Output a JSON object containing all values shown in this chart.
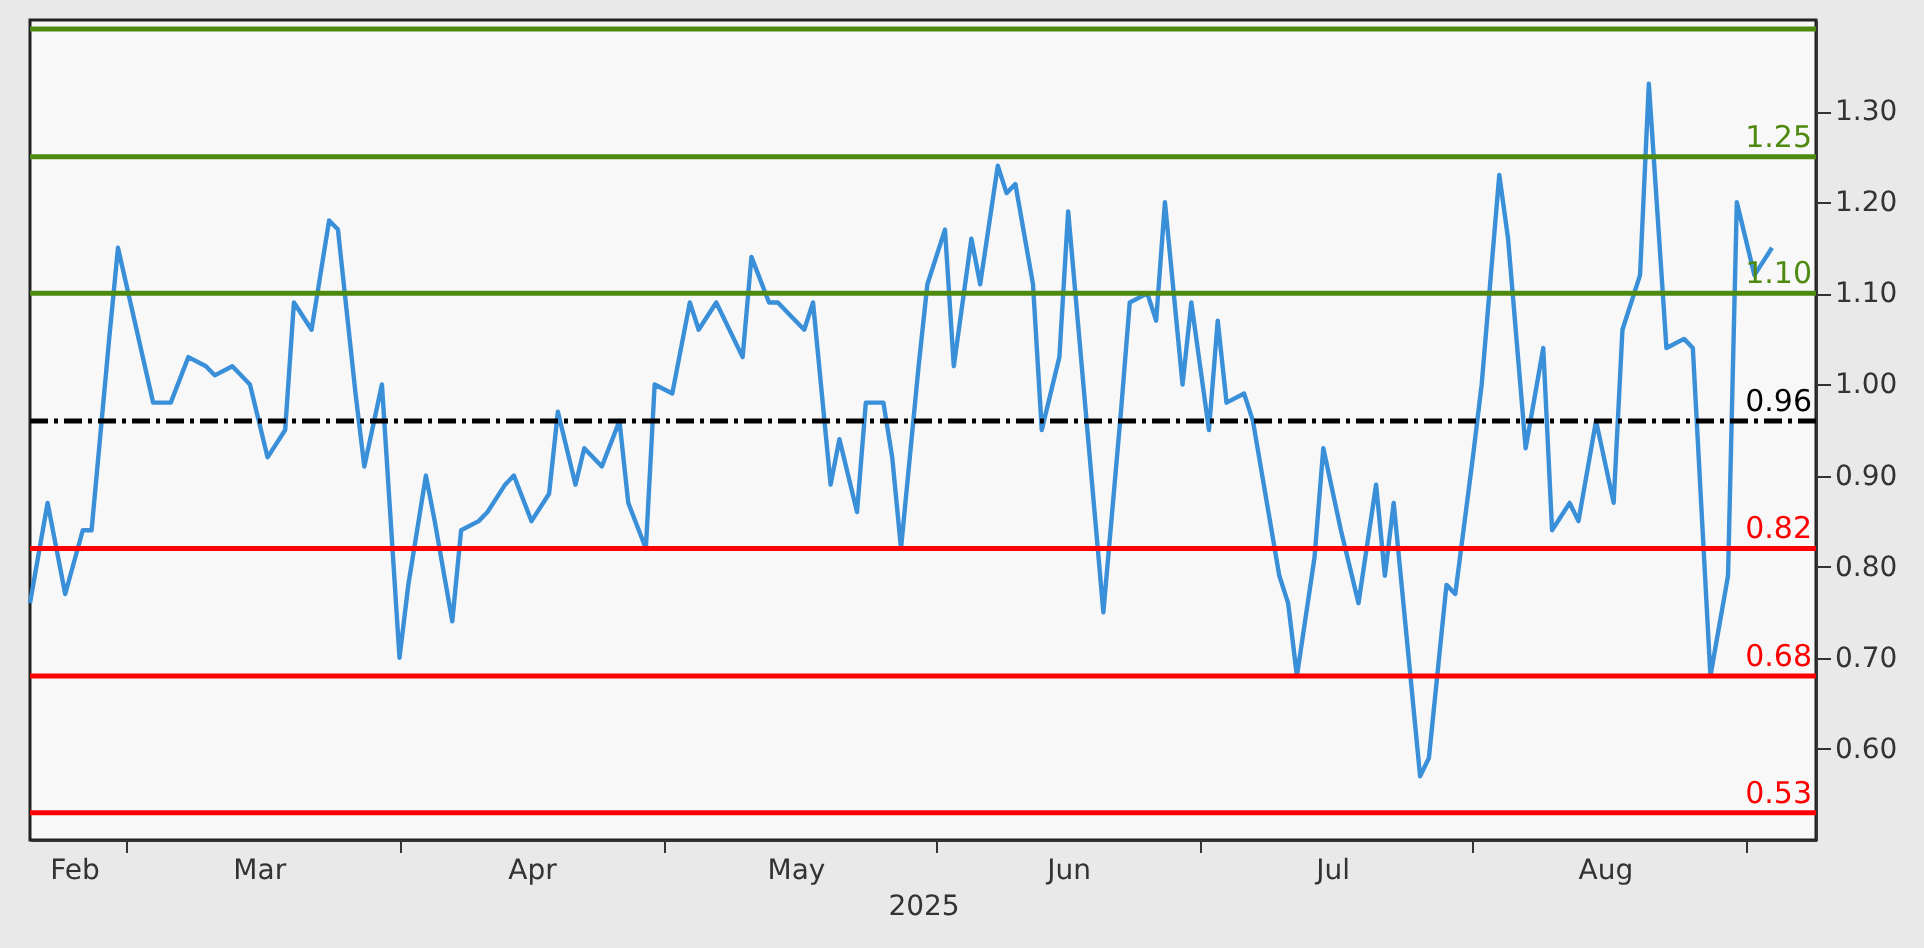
{
  "chart_data": {
    "type": "line",
    "xlabel": "2025",
    "x": [
      "2025-02-18",
      "2025-02-20",
      "2025-02-22",
      "2025-02-24",
      "2025-02-25",
      "2025-02-27",
      "2025-02-28",
      "2025-03-04",
      "2025-03-05",
      "2025-03-06",
      "2025-03-08",
      "2025-03-10",
      "2025-03-11",
      "2025-03-13",
      "2025-03-15",
      "2025-03-17",
      "2025-03-19",
      "2025-03-20",
      "2025-03-22",
      "2025-03-24",
      "2025-03-25",
      "2025-03-27",
      "2025-03-28",
      "2025-03-30",
      "2025-04-01",
      "2025-04-02",
      "2025-04-04",
      "2025-04-05",
      "2025-04-07",
      "2025-04-08",
      "2025-04-10",
      "2025-04-11",
      "2025-04-13",
      "2025-04-14",
      "2025-04-16",
      "2025-04-18",
      "2025-04-19",
      "2025-04-21",
      "2025-04-22",
      "2025-04-24",
      "2025-04-26",
      "2025-04-27",
      "2025-04-29",
      "2025-04-30",
      "2025-05-02",
      "2025-05-04",
      "2025-05-05",
      "2025-05-07",
      "2025-05-10",
      "2025-05-11",
      "2025-05-13",
      "2025-05-14",
      "2025-05-17",
      "2025-05-18",
      "2025-05-20",
      "2025-05-21",
      "2025-05-23",
      "2025-05-24",
      "2025-05-26",
      "2025-05-27",
      "2025-05-28",
      "2025-05-30",
      "2025-05-31",
      "2025-06-02",
      "2025-06-03",
      "2025-06-05",
      "2025-06-06",
      "2025-06-08",
      "2025-06-09",
      "2025-06-10",
      "2025-06-12",
      "2025-06-13",
      "2025-06-15",
      "2025-06-16",
      "2025-06-20",
      "2025-06-22",
      "2025-06-23",
      "2025-06-25",
      "2025-06-26",
      "2025-06-27",
      "2025-06-29",
      "2025-06-30",
      "2025-07-02",
      "2025-07-03",
      "2025-07-04",
      "2025-07-06",
      "2025-07-07",
      "2025-07-10",
      "2025-07-11",
      "2025-07-12",
      "2025-07-14",
      "2025-07-15",
      "2025-07-17",
      "2025-07-19",
      "2025-07-21",
      "2025-07-22",
      "2025-07-23",
      "2025-07-26",
      "2025-07-27",
      "2025-07-29",
      "2025-07-30",
      "2025-08-01",
      "2025-08-02",
      "2025-08-04",
      "2025-08-05",
      "2025-08-07",
      "2025-08-09",
      "2025-08-10",
      "2025-08-12",
      "2025-08-13",
      "2025-08-15",
      "2025-08-17",
      "2025-08-18",
      "2025-08-20",
      "2025-08-21",
      "2025-08-23",
      "2025-08-25",
      "2025-08-26",
      "2025-08-28",
      "2025-08-30",
      "2025-08-31",
      "2025-09-02",
      "2025-09-04"
    ],
    "series": [
      {
        "color": "#3a8fd9",
        "values": [
          0.76,
          0.87,
          0.77,
          0.84,
          0.84,
          1.05,
          1.15,
          0.98,
          0.98,
          0.98,
          1.03,
          1.02,
          1.01,
          1.02,
          1.0,
          0.92,
          0.95,
          1.09,
          1.06,
          1.18,
          1.17,
          0.99,
          0.91,
          1.0,
          0.7,
          0.78,
          0.9,
          0.85,
          0.74,
          0.84,
          0.85,
          0.86,
          0.89,
          0.9,
          0.85,
          0.88,
          0.97,
          0.89,
          0.93,
          0.91,
          0.96,
          0.87,
          0.82,
          1.0,
          0.99,
          1.09,
          1.06,
          1.09,
          1.03,
          1.14,
          1.09,
          1.09,
          1.06,
          1.09,
          0.89,
          0.94,
          0.86,
          0.98,
          0.98,
          0.92,
          0.82,
          1.02,
          1.11,
          1.17,
          1.02,
          1.16,
          1.11,
          1.24,
          1.21,
          1.22,
          1.11,
          0.95,
          1.03,
          1.19,
          0.75,
          0.97,
          1.09,
          1.1,
          1.07,
          1.2,
          1.0,
          1.09,
          0.95,
          1.07,
          0.98,
          0.99,
          0.96,
          0.79,
          0.76,
          0.68,
          0.81,
          0.93,
          0.84,
          0.76,
          0.89,
          0.79,
          0.87,
          0.57,
          0.59,
          0.78,
          0.77,
          0.92,
          1.0,
          1.23,
          1.16,
          0.93,
          1.04,
          0.84,
          0.87,
          0.85,
          0.96,
          0.87,
          1.06,
          1.12,
          1.33,
          1.04,
          1.05,
          1.04,
          0.68,
          0.79,
          1.2,
          1.12,
          1.15
        ]
      }
    ],
    "xlim": [
      "2025-02-18",
      "2025-09-09"
    ],
    "xticks": [
      {
        "value": "2025-02-23",
        "label": "Feb"
      },
      {
        "value": "2025-03-01",
        "label": null
      },
      {
        "value": "2025-03-16",
        "label": "Mar"
      },
      {
        "value": "2025-04-01",
        "label": null
      },
      {
        "value": "2025-04-16",
        "label": "Apr"
      },
      {
        "value": "2025-05-01",
        "label": null
      },
      {
        "value": "2025-05-16",
        "label": "May"
      },
      {
        "value": "2025-06-01",
        "label": null
      },
      {
        "value": "2025-06-16",
        "label": "Jun"
      },
      {
        "value": "2025-07-01",
        "label": null
      },
      {
        "value": "2025-07-16",
        "label": "Jul"
      },
      {
        "value": "2025-08-01",
        "label": null
      },
      {
        "value": "2025-08-16",
        "label": "Aug"
      },
      {
        "value": "2025-09-01",
        "label": null
      }
    ],
    "ylim": [
      0.5,
      1.4
    ],
    "yticks": [
      {
        "value": 0.6,
        "label": "0.60"
      },
      {
        "value": 0.7,
        "label": "0.70"
      },
      {
        "value": 0.8,
        "label": "0.80"
      },
      {
        "value": 0.9,
        "label": "0.90"
      },
      {
        "value": 1.0,
        "label": "1.00"
      },
      {
        "value": 1.1,
        "label": "1.10"
      },
      {
        "value": 1.2,
        "label": "1.20"
      },
      {
        "value": 1.3,
        "label": "1.30"
      }
    ],
    "ref_lines": [
      {
        "axis": "y",
        "value": 1.39,
        "label": null,
        "color": "#4f8a10",
        "line_style": "solid"
      },
      {
        "axis": "y",
        "value": 1.25,
        "label": "1.25",
        "color": "#4f8a10",
        "line_style": "solid"
      },
      {
        "axis": "y",
        "value": 1.1,
        "label": "1.10",
        "color": "#4f8a10",
        "line_style": "solid"
      },
      {
        "axis": "y",
        "value": 0.96,
        "label": "0.96",
        "color": "#000000",
        "line_style": "dashed"
      },
      {
        "axis": "y",
        "value": 0.82,
        "label": "0.82",
        "color": "#ff0000",
        "line_style": "solid"
      },
      {
        "axis": "y",
        "value": 0.68,
        "label": "0.68",
        "color": "#ff0000",
        "line_style": "solid"
      },
      {
        "axis": "y",
        "value": 0.53,
        "label": "0.53",
        "color": "#ff0000",
        "line_style": "solid"
      }
    ],
    "marker": "none",
    "line_style": "solid",
    "grid": false
  }
}
